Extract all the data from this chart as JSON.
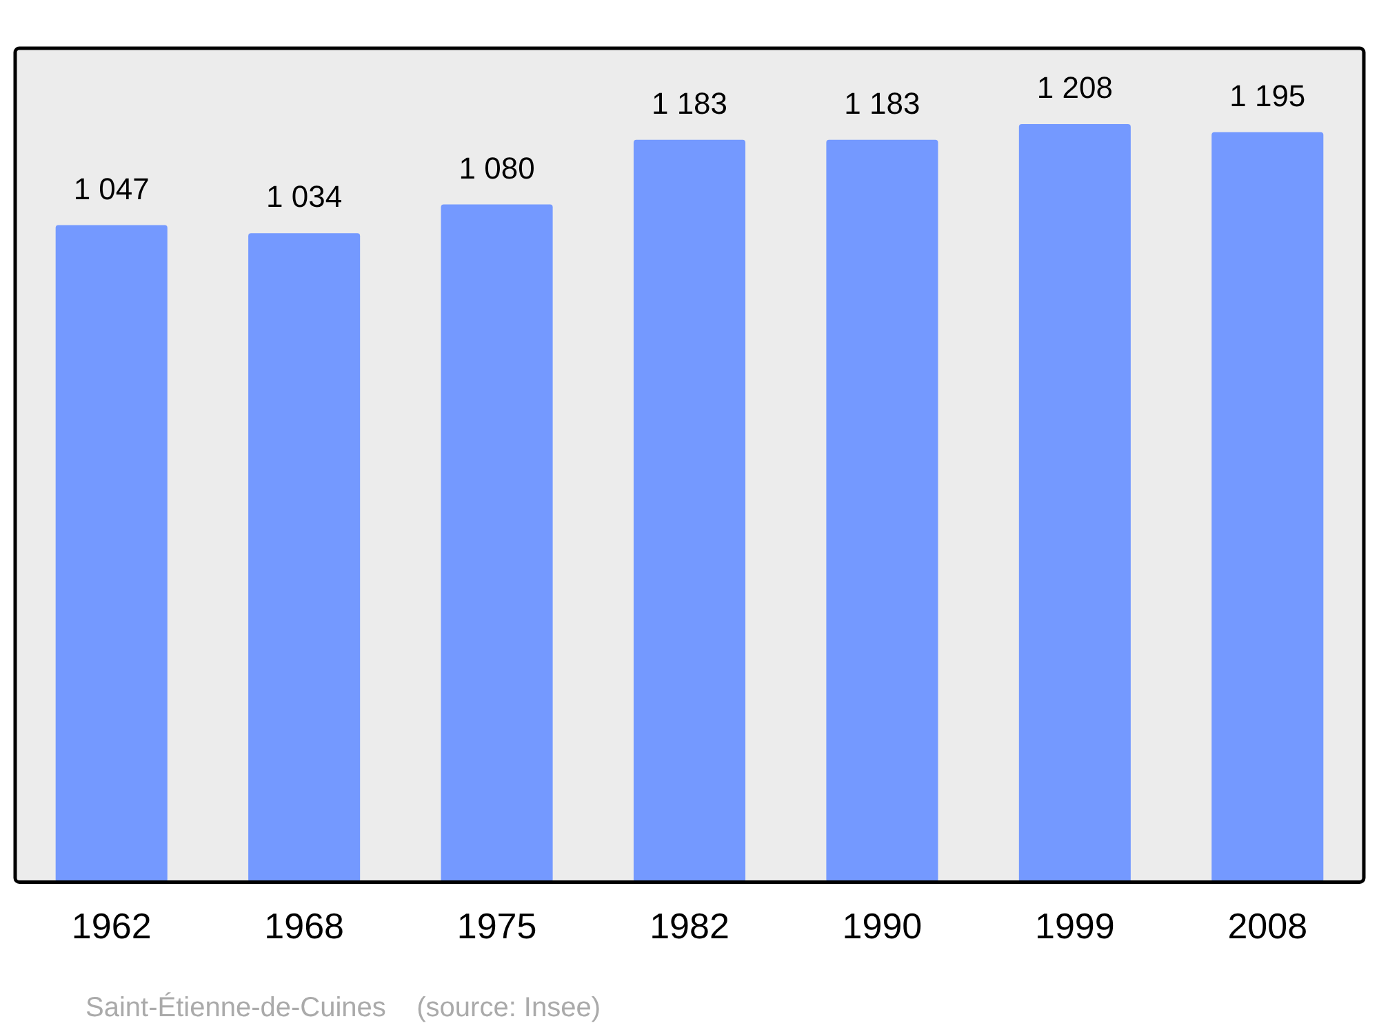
{
  "chart_data": {
    "type": "bar",
    "categories": [
      "1962",
      "1968",
      "1975",
      "1982",
      "1990",
      "1999",
      "2008"
    ],
    "values": [
      1047,
      1034,
      1080,
      1183,
      1183,
      1208,
      1195
    ],
    "value_labels": [
      "1 047",
      "1 034",
      "1 080",
      "1 183",
      "1 183",
      "1 208",
      "1 195"
    ],
    "color": "#7499ff",
    "grid": false,
    "legend": false,
    "annotations": [
      "Saint-Étienne-de-Cuines    (source: Insee)"
    ]
  }
}
